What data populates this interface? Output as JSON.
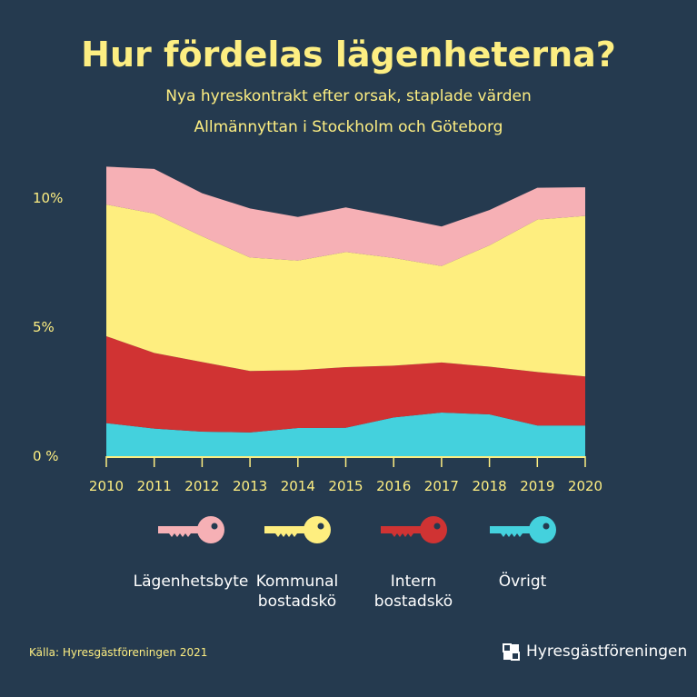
{
  "title": "Hur fördelas lägenheterna?",
  "subtitle1": "Nya hyreskontrakt efter orsak, staplade värden",
  "subtitle2": "Allmännyttan i Stockholm och Göteborg",
  "source": "Källa: Hyresgästföreningen 2021",
  "logo_text": "Hyresgästföreningen",
  "chart_data": {
    "type": "area",
    "stacked": true,
    "x": [
      2010,
      2011,
      2012,
      2013,
      2014,
      2015,
      2016,
      2017,
      2018,
      2019,
      2020
    ],
    "x_tick_labels": [
      "2010",
      "2011",
      "2012",
      "2013",
      "2014",
      "2015",
      "2016",
      "2017",
      "2018",
      "2019",
      "2020"
    ],
    "y_tick_labels": [
      "0 %",
      "5%",
      "10%"
    ],
    "y_ticks": [
      0,
      5,
      10
    ],
    "ylim": [
      0,
      11.5
    ],
    "grid": false,
    "legend_placement": "bottom",
    "series": [
      {
        "name": "Övrigt",
        "color": "#44d1dd",
        "icon": "key-icon",
        "values": [
          1.28,
          1.07,
          0.95,
          0.92,
          1.09,
          1.1,
          1.5,
          1.69,
          1.62,
          1.19,
          1.19
        ]
      },
      {
        "name": "Intern bostadskö",
        "color": "#d03333",
        "icon": "key-icon",
        "values": [
          3.37,
          2.93,
          2.7,
          2.38,
          2.24,
          2.35,
          2.01,
          1.94,
          1.85,
          2.07,
          1.9
        ]
      },
      {
        "name": "Kommunal bostadskö",
        "color": "#feee7f",
        "icon": "key-icon",
        "values": [
          5.1,
          5.4,
          4.87,
          4.4,
          4.25,
          4.46,
          4.17,
          3.74,
          4.7,
          5.91,
          6.22
        ]
      },
      {
        "name": "Lägenhetsbyte",
        "color": "#f6b0b5",
        "icon": "key-icon",
        "values": [
          1.47,
          1.73,
          1.67,
          1.9,
          1.69,
          1.73,
          1.6,
          1.53,
          1.37,
          1.23,
          1.11
        ]
      }
    ],
    "legend_order": [
      "Lägenhetsbyte",
      "Kommunal bostadskö",
      "Intern bostadskö",
      "Övrigt"
    ],
    "legend_labels": [
      [
        "Lägenhetsbyte",
        ""
      ],
      [
        "Kommunal",
        "bostadskö"
      ],
      [
        "Intern",
        "bostadskö"
      ],
      [
        "Övrigt",
        ""
      ]
    ]
  }
}
